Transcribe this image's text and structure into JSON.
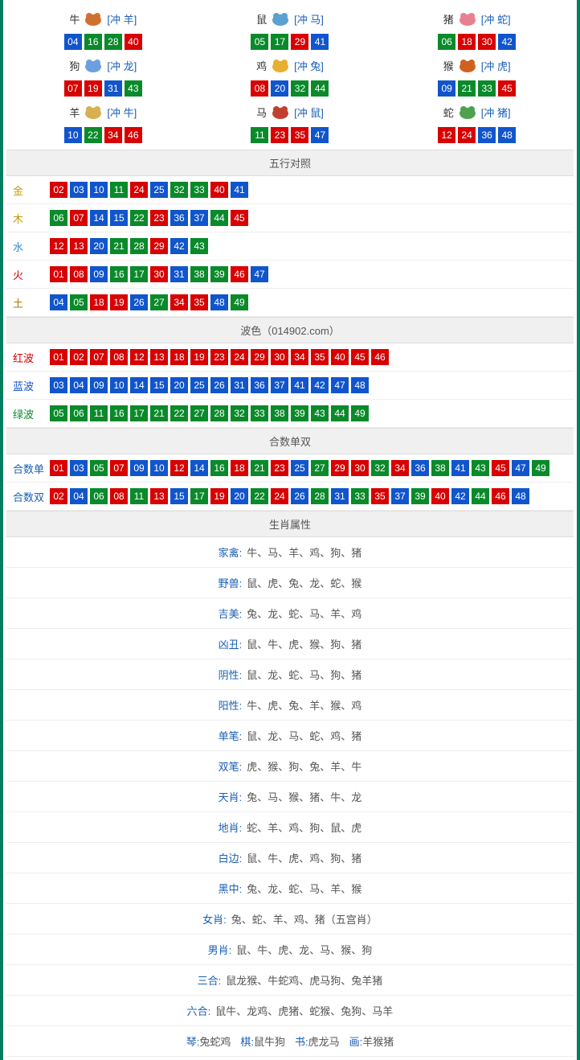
{
  "colors": {
    "border": "#008060",
    "red": "#d80000",
    "blue": "#1155cc",
    "green": "#0a8a2a",
    "link": "#1a5fb4",
    "section_bg": "#f0f0f0",
    "row_border": "#eeeeee"
  },
  "ball_colors": {
    "01": "red",
    "02": "red",
    "07": "red",
    "08": "red",
    "12": "red",
    "13": "red",
    "18": "red",
    "19": "red",
    "23": "red",
    "24": "red",
    "29": "red",
    "30": "red",
    "34": "red",
    "35": "red",
    "40": "red",
    "45": "red",
    "46": "red",
    "03": "blue",
    "04": "blue",
    "09": "blue",
    "10": "blue",
    "14": "blue",
    "15": "blue",
    "20": "blue",
    "25": "blue",
    "26": "blue",
    "31": "blue",
    "36": "blue",
    "37": "blue",
    "41": "blue",
    "42": "blue",
    "47": "blue",
    "48": "blue",
    "05": "green",
    "06": "green",
    "11": "green",
    "16": "green",
    "17": "green",
    "21": "green",
    "22": "green",
    "27": "green",
    "28": "green",
    "32": "green",
    "33": "green",
    "38": "green",
    "39": "green",
    "43": "green",
    "44": "green",
    "49": "green"
  },
  "zodiac_icons": {
    "牛": "#d07030",
    "鼠": "#5aa0d0",
    "猪": "#e88090",
    "狗": "#6aa0e0",
    "鸡": "#e8b030",
    "猴": "#d06020",
    "羊": "#d8b050",
    "马": "#c04030",
    "蛇": "#50a050"
  },
  "zodiac": [
    {
      "name": "牛",
      "conflict": "[冲 羊]",
      "balls": [
        "04",
        "16",
        "28",
        "40"
      ]
    },
    {
      "name": "鼠",
      "conflict": "[冲 马]",
      "balls": [
        "05",
        "17",
        "29",
        "41"
      ]
    },
    {
      "name": "猪",
      "conflict": "[冲 蛇]",
      "balls": [
        "06",
        "18",
        "30",
        "42"
      ]
    },
    {
      "name": "狗",
      "conflict": "[冲 龙]",
      "balls": [
        "07",
        "19",
        "31",
        "43"
      ]
    },
    {
      "name": "鸡",
      "conflict": "[冲 兔]",
      "balls": [
        "08",
        "20",
        "32",
        "44"
      ]
    },
    {
      "name": "猴",
      "conflict": "[冲 虎]",
      "balls": [
        "09",
        "21",
        "33",
        "45"
      ]
    },
    {
      "name": "羊",
      "conflict": "[冲 牛]",
      "balls": [
        "10",
        "22",
        "34",
        "46"
      ]
    },
    {
      "name": "马",
      "conflict": "[冲 鼠]",
      "balls": [
        "11",
        "23",
        "35",
        "47"
      ]
    },
    {
      "name": "蛇",
      "conflict": "[冲 猪]",
      "balls": [
        "12",
        "24",
        "36",
        "48"
      ]
    }
  ],
  "sections": {
    "wuxing": {
      "title": "五行对照",
      "rows": [
        {
          "label": "金",
          "label_class": "c-gold",
          "balls": [
            "02",
            "03",
            "10",
            "11",
            "24",
            "25",
            "32",
            "33",
            "40",
            "41"
          ]
        },
        {
          "label": "木",
          "label_class": "c-wood",
          "balls": [
            "06",
            "07",
            "14",
            "15",
            "22",
            "23",
            "36",
            "37",
            "44",
            "45"
          ]
        },
        {
          "label": "水",
          "label_class": "c-water",
          "balls": [
            "12",
            "13",
            "20",
            "21",
            "28",
            "29",
            "42",
            "43"
          ]
        },
        {
          "label": "火",
          "label_class": "c-fire",
          "balls": [
            "01",
            "08",
            "09",
            "16",
            "17",
            "30",
            "31",
            "38",
            "39",
            "46",
            "47"
          ]
        },
        {
          "label": "土",
          "label_class": "c-earth",
          "balls": [
            "04",
            "05",
            "18",
            "19",
            "26",
            "27",
            "34",
            "35",
            "48",
            "49"
          ]
        }
      ]
    },
    "bose": {
      "title": "波色（014902.com）",
      "rows": [
        {
          "label": "红波",
          "label_class": "c-red",
          "balls": [
            "01",
            "02",
            "07",
            "08",
            "12",
            "13",
            "18",
            "19",
            "23",
            "24",
            "29",
            "30",
            "34",
            "35",
            "40",
            "45",
            "46"
          ]
        },
        {
          "label": "蓝波",
          "label_class": "c-blue",
          "balls": [
            "03",
            "04",
            "09",
            "10",
            "14",
            "15",
            "20",
            "25",
            "26",
            "31",
            "36",
            "37",
            "41",
            "42",
            "47",
            "48"
          ]
        },
        {
          "label": "绿波",
          "label_class": "c-green",
          "balls": [
            "05",
            "06",
            "11",
            "16",
            "17",
            "21",
            "22",
            "27",
            "28",
            "32",
            "33",
            "38",
            "39",
            "43",
            "44",
            "49"
          ]
        }
      ]
    },
    "heshu": {
      "title": "合数单双",
      "rows": [
        {
          "label": "合数单",
          "label_class": "c-blue2",
          "balls": [
            "01",
            "03",
            "05",
            "07",
            "09",
            "10",
            "12",
            "14",
            "16",
            "18",
            "21",
            "23",
            "25",
            "27",
            "29",
            "30",
            "32",
            "34",
            "36",
            "38",
            "41",
            "43",
            "45",
            "47",
            "49"
          ]
        },
        {
          "label": "合数双",
          "label_class": "c-blue2",
          "balls": [
            "02",
            "04",
            "06",
            "08",
            "11",
            "13",
            "15",
            "17",
            "19",
            "20",
            "22",
            "24",
            "26",
            "28",
            "31",
            "33",
            "35",
            "37",
            "39",
            "40",
            "42",
            "44",
            "46",
            "48"
          ]
        }
      ]
    }
  },
  "attributes": {
    "title": "生肖属性",
    "rows": [
      {
        "label": "家禽:",
        "value": "牛、马、羊、鸡、狗、猪"
      },
      {
        "label": "野兽:",
        "value": "鼠、虎、兔、龙、蛇、猴"
      },
      {
        "label": "吉美:",
        "value": "兔、龙、蛇、马、羊、鸡"
      },
      {
        "label": "凶丑:",
        "value": "鼠、牛、虎、猴、狗、猪"
      },
      {
        "label": "阴性:",
        "value": "鼠、龙、蛇、马、狗、猪"
      },
      {
        "label": "阳性:",
        "value": "牛、虎、兔、羊、猴、鸡"
      },
      {
        "label": "单笔:",
        "value": "鼠、龙、马、蛇、鸡、猪"
      },
      {
        "label": "双笔:",
        "value": "虎、猴、狗、兔、羊、牛"
      },
      {
        "label": "天肖:",
        "value": "兔、马、猴、猪、牛、龙"
      },
      {
        "label": "地肖:",
        "value": "蛇、羊、鸡、狗、鼠、虎"
      },
      {
        "label": "白边:",
        "value": "鼠、牛、虎、鸡、狗、猪"
      },
      {
        "label": "黑中:",
        "value": "兔、龙、蛇、马、羊、猴"
      },
      {
        "label": "女肖:",
        "value": "兔、蛇、羊、鸡、猪（五宫肖）"
      },
      {
        "label": "男肖:",
        "value": "鼠、牛、虎、龙、马、猴、狗"
      },
      {
        "label": "三合:",
        "value": "鼠龙猴、牛蛇鸡、虎马狗、兔羊猪"
      },
      {
        "label": "六合:",
        "value": "鼠牛、龙鸡、虎猪、蛇猴、兔狗、马羊"
      }
    ],
    "last_row": [
      {
        "k": "琴:",
        "v": "兔蛇鸡"
      },
      {
        "k": "棋:",
        "v": "鼠牛狗"
      },
      {
        "k": "书:",
        "v": "虎龙马"
      },
      {
        "k": "画:",
        "v": "羊猴猪"
      }
    ]
  }
}
